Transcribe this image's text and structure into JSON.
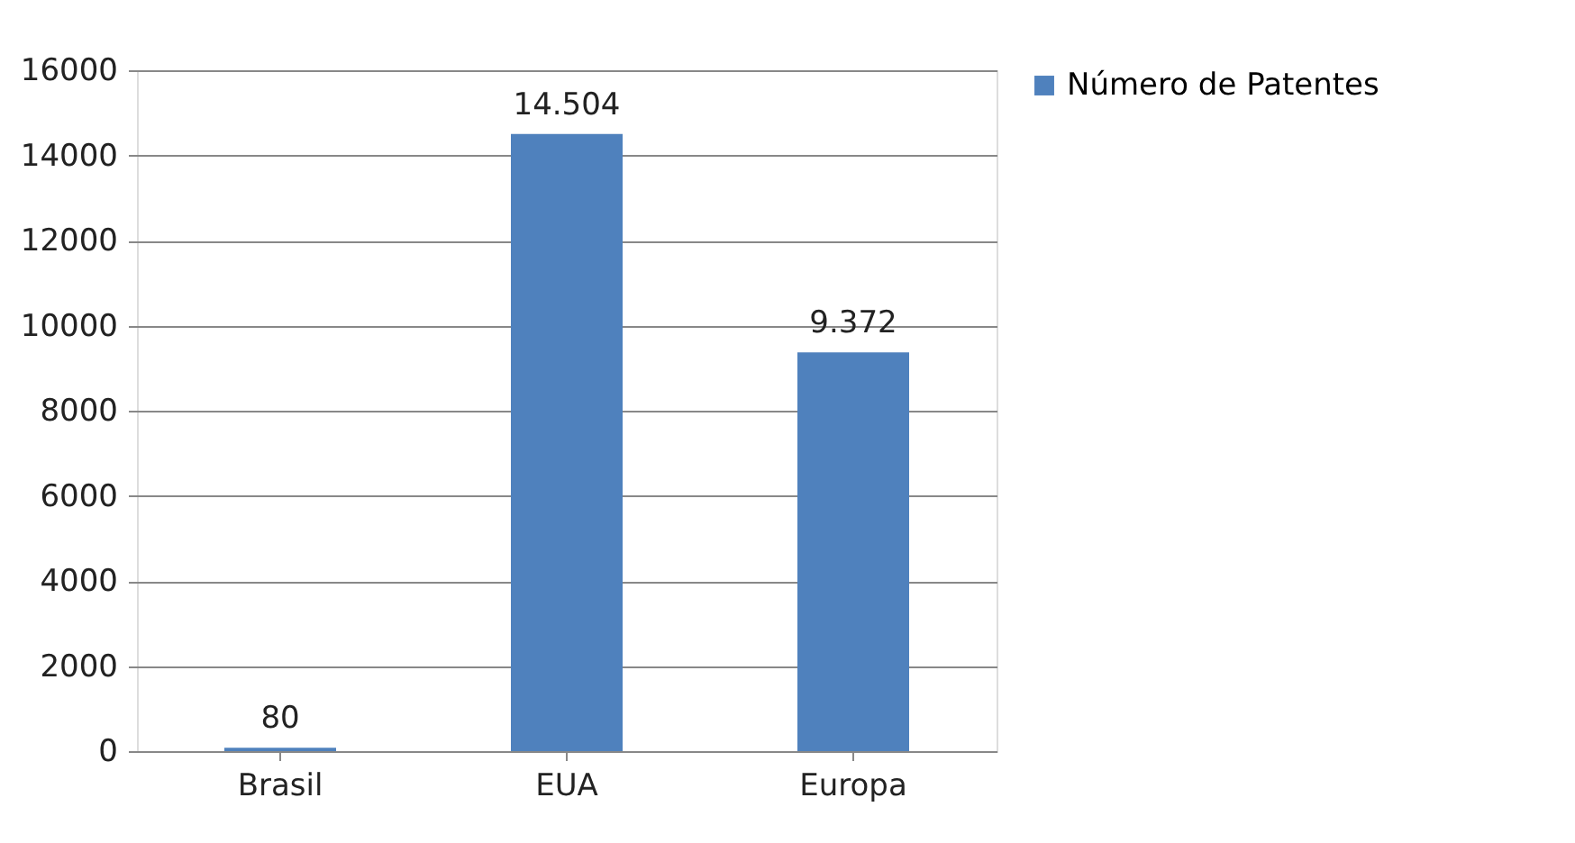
{
  "chart_data": {
    "type": "bar",
    "categories": [
      "Brasil",
      "EUA",
      "Europa"
    ],
    "series": [
      {
        "name": "Número de Patentes",
        "color": "#4f81bd",
        "values": [
          80,
          14504,
          9372
        ],
        "value_labels": [
          "80",
          "14.504",
          "9.372"
        ]
      }
    ],
    "ylim": [
      0,
      16000
    ],
    "yticks": [
      0,
      2000,
      4000,
      6000,
      8000,
      10000,
      12000,
      14000,
      16000
    ],
    "grid": "y",
    "legend": "right"
  }
}
